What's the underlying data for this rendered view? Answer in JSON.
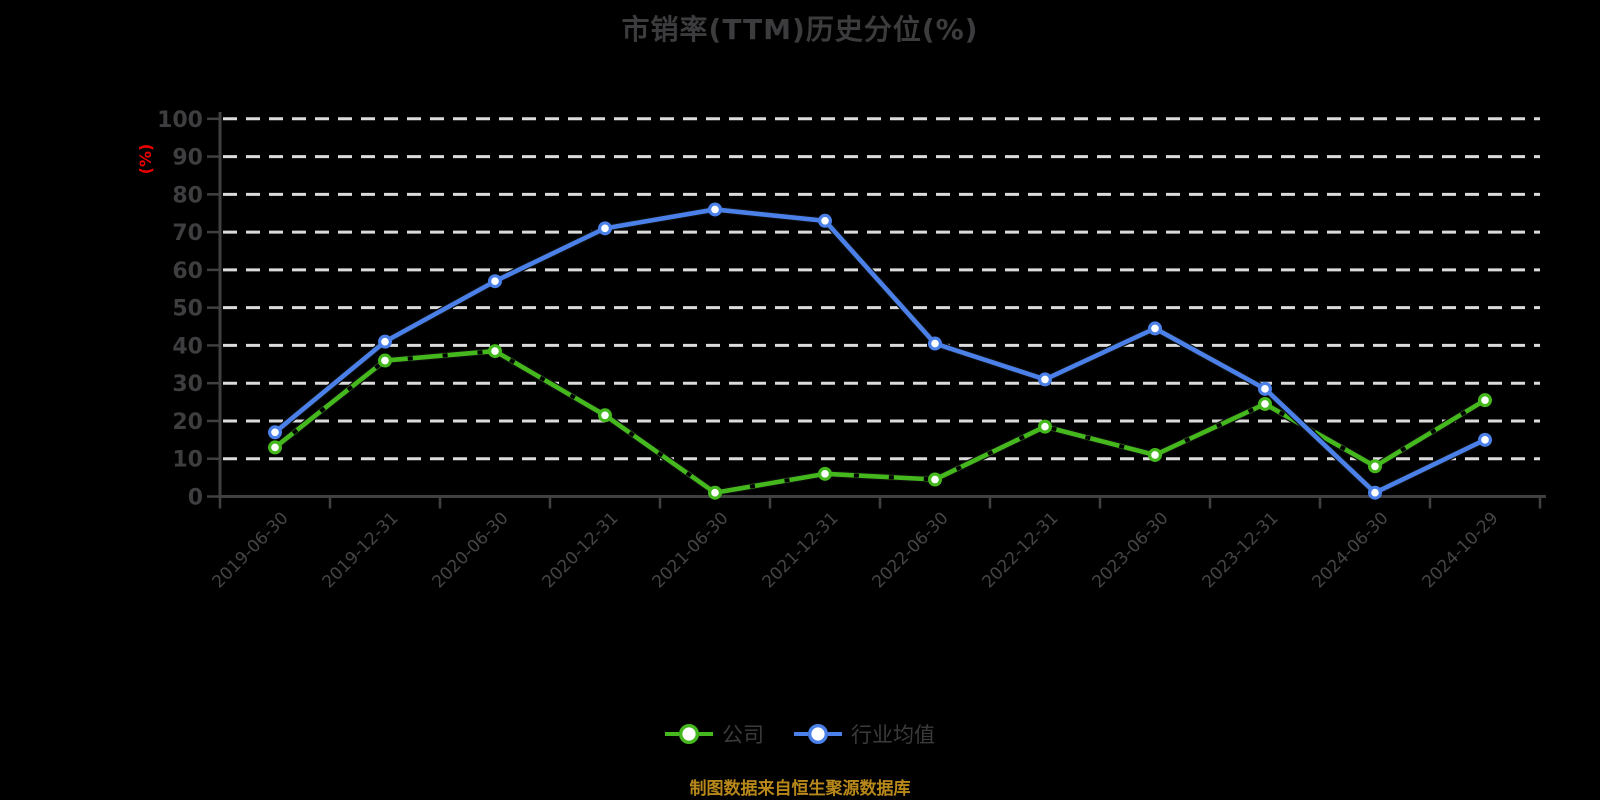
{
  "title": "市销率(TTM)历史分位(%)",
  "footer": {
    "text": "制图数据来自恒生聚源数据库"
  },
  "colors": {
    "background": "#000000",
    "company": "#45b81e",
    "industry": "#4a80e8",
    "grid_dash": "#dbdbdb",
    "axis": "#404042",
    "tick_label": "#3e3e40",
    "title_text": "#3c3c3e",
    "unit_label": "#ee0000",
    "footer_text": "#b8881a"
  },
  "chart_data": {
    "type": "line",
    "title": "市销率(TTM)历史分位(%)",
    "xlabel": "",
    "ylabel": "(%)",
    "ylim": [
      0,
      100
    ],
    "yticks": [
      0,
      10,
      20,
      30,
      40,
      50,
      60,
      70,
      80,
      90,
      100
    ],
    "grid": "horizontal-dashed",
    "legend_position": "bottom",
    "categories": [
      "2019-06-30",
      "2019-12-31",
      "2020-06-30",
      "2020-12-31",
      "2021-06-30",
      "2021-12-31",
      "2022-06-30",
      "2022-12-31",
      "2023-06-30",
      "2023-12-31",
      "2024-06-30",
      "2024-10-29"
    ],
    "series": [
      {
        "name": "公司",
        "color": "#45b81e",
        "marker": "circle-white-fill",
        "values": [
          13,
          36,
          38.5,
          21.5,
          1,
          6,
          4.5,
          18.5,
          11,
          24.5,
          8,
          25.5
        ]
      },
      {
        "name": "行业均值",
        "color": "#4a80e8",
        "marker": "circle-white-fill",
        "values": [
          17,
          41,
          57,
          71,
          76,
          73,
          40.5,
          31,
          44.5,
          28.5,
          1,
          15
        ]
      }
    ]
  }
}
